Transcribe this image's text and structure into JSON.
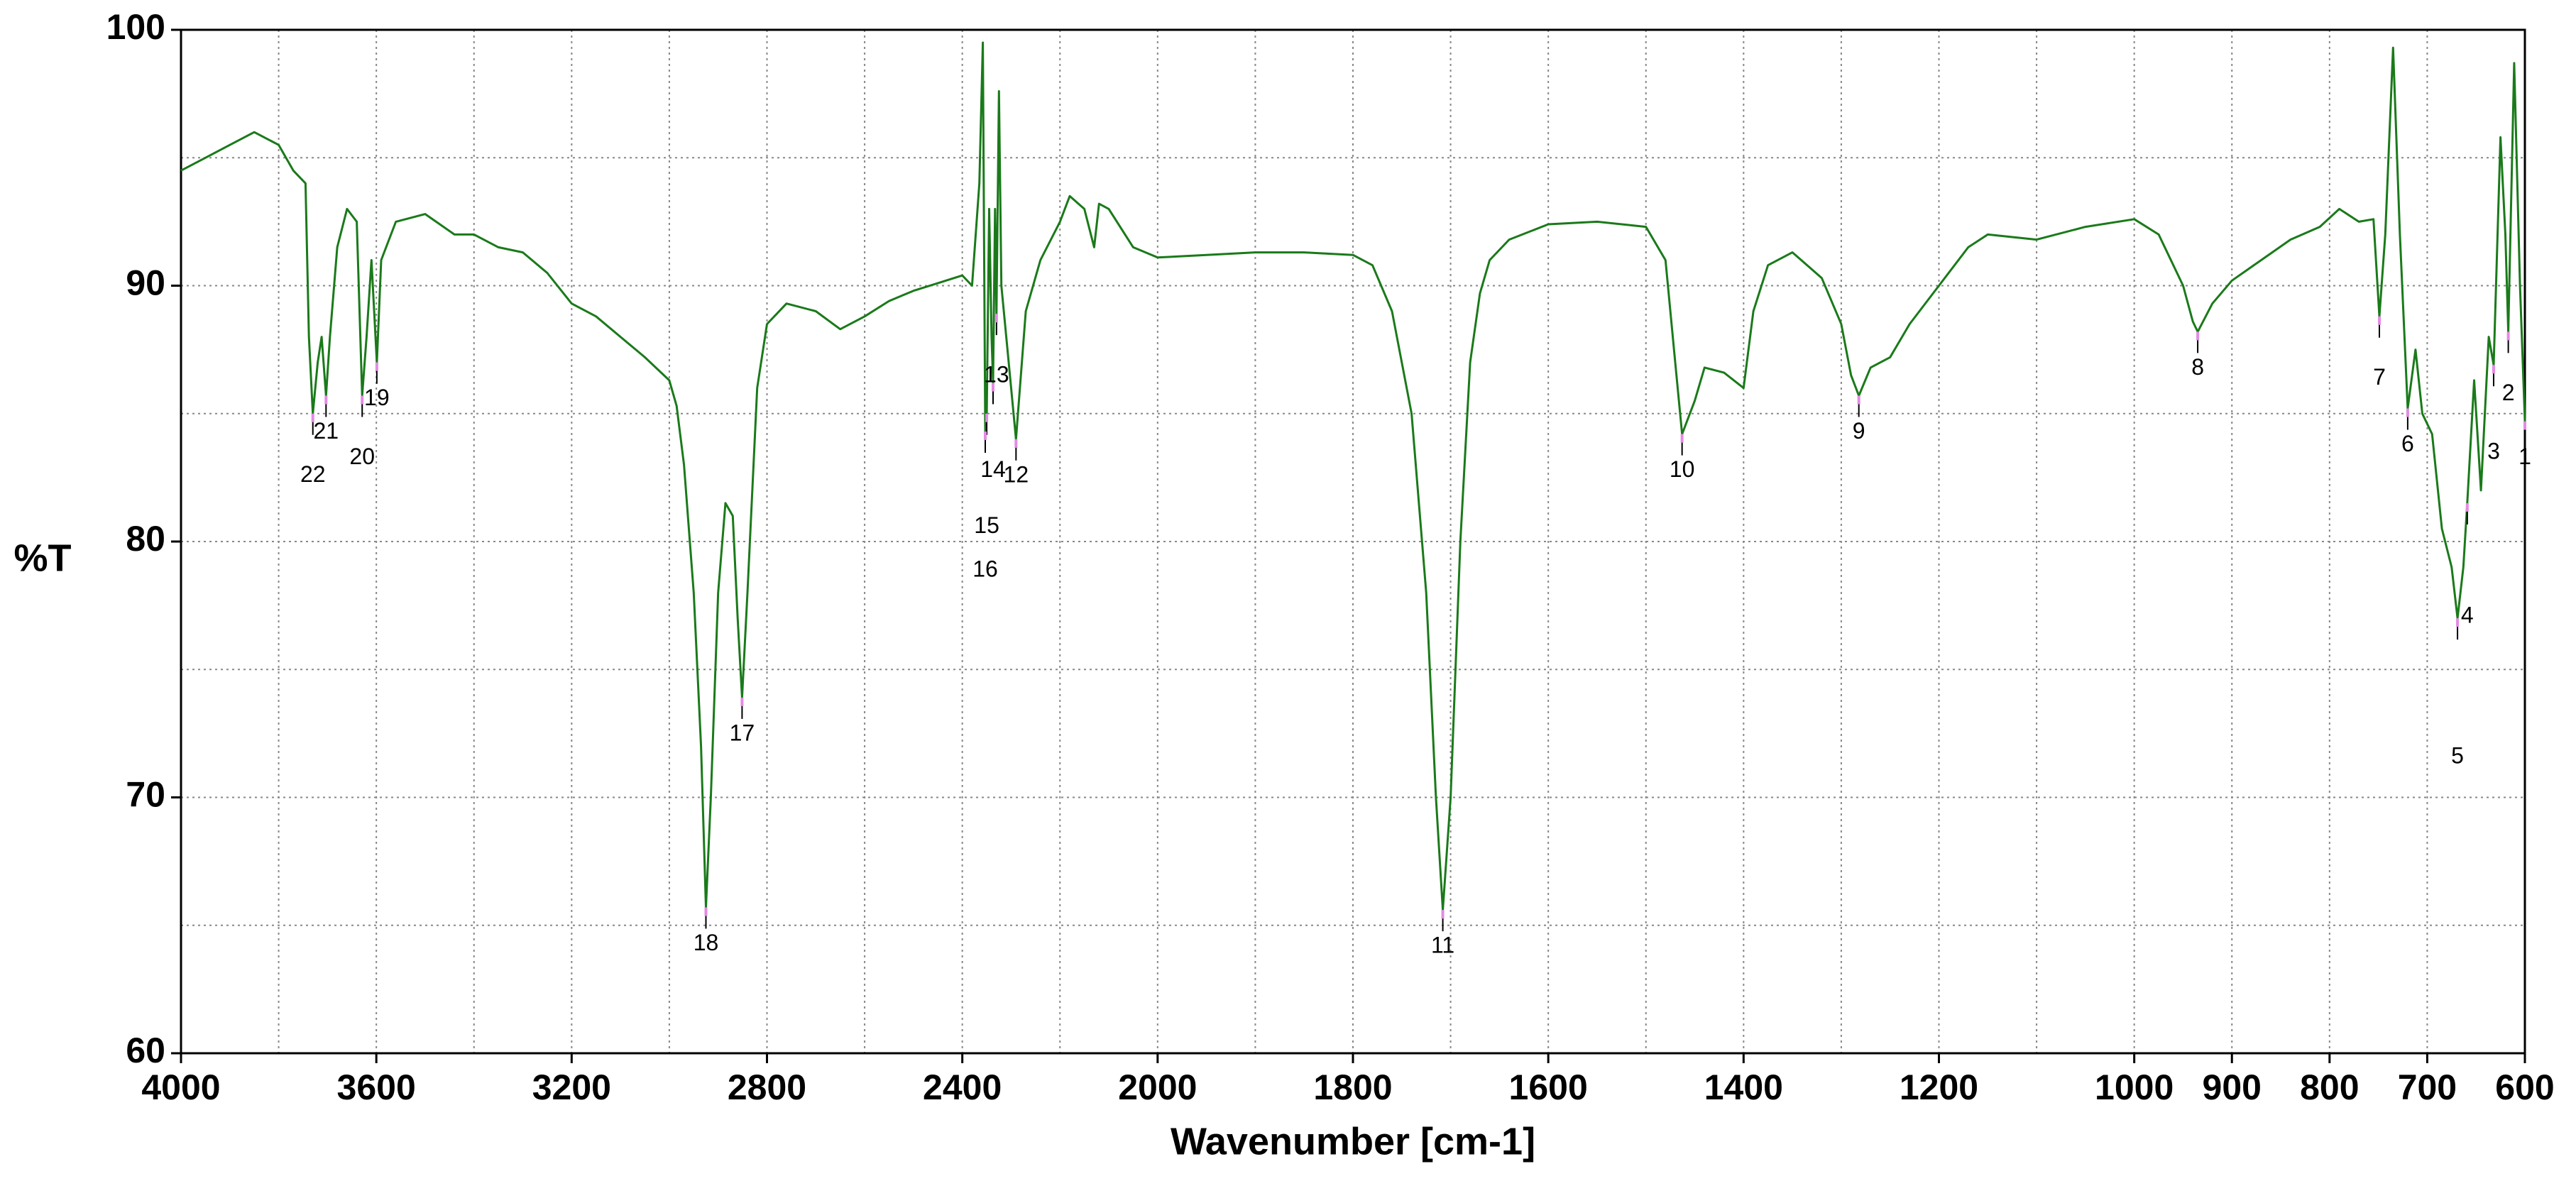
{
  "chart_data": {
    "type": "line",
    "xlabel": "Wavenumber [cm-1]",
    "ylabel": "%T",
    "color": "#1a7a1a",
    "xlim": [
      4000,
      600
    ],
    "xbreak": 2000,
    "ylim": [
      60,
      100
    ],
    "xticks": [
      4000,
      3600,
      3200,
      2800,
      2400,
      2000,
      1800,
      1600,
      1400,
      1200,
      1000,
      900,
      800,
      700,
      600
    ],
    "xminorticks": [
      3800,
      3400,
      3000,
      2600,
      2200,
      1900,
      1700,
      1500,
      1300,
      1100
    ],
    "yticks": [
      60,
      70,
      80,
      90,
      100
    ],
    "yminorticks": [
      65,
      75,
      85,
      95
    ],
    "grid": true,
    "x": [
      4000,
      3950,
      3900,
      3850,
      3800,
      3770,
      3745,
      3738,
      3730,
      3720,
      3712,
      3703,
      3695,
      3680,
      3660,
      3640,
      3629,
      3620,
      3610,
      3599,
      3590,
      3560,
      3500,
      3440,
      3400,
      3350,
      3300,
      3250,
      3200,
      3150,
      3100,
      3050,
      3000,
      2985,
      2970,
      2950,
      2935,
      2925,
      2915,
      2900,
      2885,
      2870,
      2860,
      2851,
      2840,
      2820,
      2800,
      2760,
      2700,
      2650,
      2600,
      2550,
      2500,
      2450,
      2400,
      2380,
      2365,
      2358,
      2353,
      2350,
      2345,
      2340,
      2337,
      2333,
      2330,
      2325,
      2320,
      2310,
      2290,
      2270,
      2240,
      2200,
      2180,
      2150,
      2130,
      2120,
      2100,
      2050,
      2000,
      1950,
      1900,
      1850,
      1800,
      1780,
      1760,
      1740,
      1725,
      1715,
      1708,
      1700,
      1690,
      1680,
      1670,
      1660,
      1640,
      1600,
      1550,
      1500,
      1480,
      1470,
      1463,
      1450,
      1440,
      1420,
      1400,
      1390,
      1375,
      1350,
      1320,
      1300,
      1290,
      1282,
      1270,
      1250,
      1230,
      1200,
      1170,
      1150,
      1100,
      1050,
      1000,
      975,
      950,
      940,
      935,
      920,
      900,
      870,
      840,
      810,
      790,
      770,
      755,
      749,
      743,
      735,
      728,
      720,
      712,
      705,
      695,
      685,
      675,
      669,
      663,
      659,
      652,
      645,
      637,
      632,
      625,
      620,
      617,
      611,
      605,
      600
    ],
    "values": [
      94.5,
      95.0,
      95.5,
      96.0,
      95.5,
      94.5,
      94.0,
      88,
      85.0,
      87,
      88,
      85.7,
      88,
      91.5,
      93,
      92.5,
      85.7,
      88,
      91,
      87,
      91,
      92.5,
      92.8,
      92.0,
      92.0,
      91.5,
      91.3,
      90.5,
      89.3,
      88.8,
      88.0,
      87.2,
      86.3,
      85.3,
      83,
      78,
      72,
      65.7,
      70,
      78,
      81.5,
      81,
      77,
      73.9,
      78,
      86,
      88.5,
      89.3,
      89.0,
      88.3,
      88.8,
      89.4,
      89.8,
      90.1,
      90.4,
      90.0,
      94,
      99.5,
      84.3,
      85.0,
      93,
      88,
      86.2,
      93,
      88.9,
      97.6,
      90,
      88,
      84.0,
      89,
      91,
      92.5,
      93.5,
      93,
      91.5,
      93.2,
      93.0,
      91.5,
      91.1,
      91.2,
      91.3,
      91.3,
      91.2,
      90.8,
      89,
      85,
      78,
      70,
      65.6,
      70,
      80,
      87,
      89.7,
      91,
      91.8,
      92.4,
      92.5,
      92.3,
      91,
      87,
      84.2,
      85.5,
      86.8,
      86.6,
      86.0,
      89,
      90.8,
      91.3,
      90.3,
      88.5,
      86.5,
      85.7,
      86.8,
      87.2,
      88.5,
      90.0,
      91.5,
      92.0,
      91.8,
      92.3,
      92.6,
      92.0,
      90.0,
      88.6,
      88.2,
      89.3,
      90.2,
      91.0,
      91.8,
      92.3,
      93.0,
      92.5,
      92.6,
      88.8,
      92.0,
      99.3,
      92,
      85.2,
      87.5,
      85.0,
      84.2,
      80.5,
      79,
      77.0,
      79,
      81.5,
      86.3,
      82,
      88,
      86.9,
      95.8,
      92,
      88.2,
      98.7,
      90,
      84.7
    ],
    "peaks": [
      {
        "label": "1",
        "x": 600,
        "y": 84.7
      },
      {
        "label": "2",
        "x": 617,
        "y": 88.2
      },
      {
        "label": "3",
        "x": 632,
        "y": 86.9
      },
      {
        "label": "4",
        "x": 659,
        "y": 81.5
      },
      {
        "label": "5",
        "x": 669,
        "y": 77.0
      },
      {
        "label": "6",
        "x": 720,
        "y": 85.2
      },
      {
        "label": "7",
        "x": 749,
        "y": 88.8
      },
      {
        "label": "8",
        "x": 935,
        "y": 88.2
      },
      {
        "label": "9",
        "x": 1282,
        "y": 85.7
      },
      {
        "label": "10",
        "x": 1463,
        "y": 84.2
      },
      {
        "label": "11",
        "x": 1708,
        "y": 65.6
      },
      {
        "label": "12",
        "x": 2290,
        "y": 84.0
      },
      {
        "label": "13",
        "x": 2330,
        "y": 88.9
      },
      {
        "label": "14",
        "x": 2337,
        "y": 86.2
      },
      {
        "label": "15",
        "x": 2350,
        "y": 85.0
      },
      {
        "label": "16",
        "x": 2353,
        "y": 84.3
      },
      {
        "label": "17",
        "x": 2851,
        "y": 73.9
      },
      {
        "label": "18",
        "x": 2925,
        "y": 65.7
      },
      {
        "label": "19",
        "x": 3599,
        "y": 87.0
      },
      {
        "label": "20",
        "x": 3629,
        "y": 85.7
      },
      {
        "label": "21",
        "x": 3703,
        "y": 85.7
      },
      {
        "label": "22",
        "x": 3730,
        "y": 85.0
      }
    ]
  }
}
